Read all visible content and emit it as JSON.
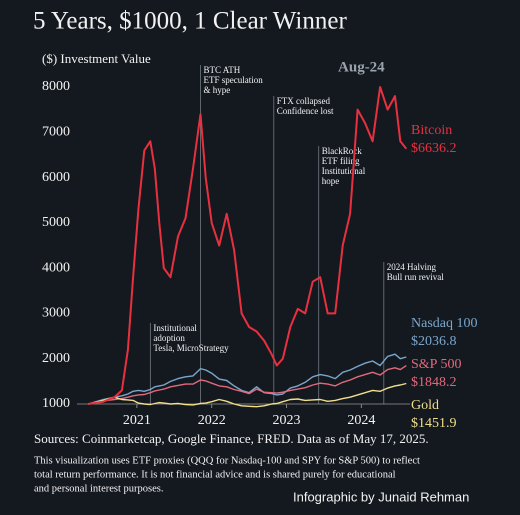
{
  "chart_data": {
    "type": "line",
    "title": "5 Years, $1000, 1 Clear Winner",
    "y_label": "($) Investment Value",
    "x": [
      2020.35,
      2020.55,
      2020.7,
      2020.8,
      2020.88,
      2020.95,
      2021.02,
      2021.1,
      2021.18,
      2021.24,
      2021.3,
      2021.36,
      2021.45,
      2021.55,
      2021.65,
      2021.75,
      2021.85,
      2021.92,
      2022.0,
      2022.1,
      2022.2,
      2022.3,
      2022.4,
      2022.5,
      2022.6,
      2022.7,
      2022.8,
      2022.87,
      2022.95,
      2023.05,
      2023.15,
      2023.25,
      2023.35,
      2023.45,
      2023.55,
      2023.65,
      2023.75,
      2023.85,
      2023.95,
      2024.05,
      2024.15,
      2024.25,
      2024.35,
      2024.45,
      2024.52,
      2024.6
    ],
    "series": [
      {
        "name": "Nasdaq 100",
        "color": "#7aa6cc",
        "end_label": "$2036.8",
        "values": [
          1000,
          1100,
          1150,
          1180,
          1220,
          1280,
          1300,
          1280,
          1320,
          1380,
          1400,
          1420,
          1500,
          1560,
          1600,
          1620,
          1780,
          1750,
          1680,
          1550,
          1520,
          1400,
          1300,
          1250,
          1380,
          1250,
          1230,
          1200,
          1220,
          1350,
          1400,
          1480,
          1600,
          1650,
          1620,
          1560,
          1700,
          1750,
          1830,
          1900,
          1950,
          1850,
          2050,
          2100,
          2000,
          2036.8
        ]
      },
      {
        "name": "S&P 500",
        "color": "#e06a7c",
        "end_label": "$1848.2",
        "values": [
          1000,
          1070,
          1100,
          1120,
          1150,
          1180,
          1200,
          1210,
          1250,
          1290,
          1310,
          1330,
          1380,
          1410,
          1440,
          1440,
          1530,
          1510,
          1460,
          1400,
          1380,
          1320,
          1280,
          1230,
          1330,
          1260,
          1250,
          1240,
          1260,
          1300,
          1330,
          1360,
          1420,
          1460,
          1440,
          1400,
          1480,
          1530,
          1600,
          1650,
          1700,
          1640,
          1760,
          1800,
          1760,
          1848.2
        ]
      },
      {
        "name": "Gold",
        "color": "#f2df8a",
        "end_label": "$1451.9",
        "values": [
          1000,
          1080,
          1150,
          1100,
          1090,
          1080,
          1020,
          1000,
          990,
          1010,
          1030,
          1020,
          1000,
          1010,
          990,
          980,
          1010,
          1020,
          1050,
          1100,
          1060,
          1000,
          960,
          950,
          940,
          960,
          1000,
          1010,
          1050,
          1100,
          1110,
          1080,
          1090,
          1100,
          1060,
          1080,
          1120,
          1150,
          1200,
          1250,
          1300,
          1280,
          1350,
          1400,
          1420,
          1451.9
        ]
      },
      {
        "name": "Bitcoin",
        "color": "#e8303f",
        "end_label": "$6636.2",
        "values": [
          1000,
          1050,
          1150,
          1300,
          2200,
          3800,
          5300,
          6600,
          6800,
          6200,
          5000,
          4000,
          3800,
          4700,
          5100,
          6200,
          7400,
          6000,
          5000,
          4500,
          5200,
          4400,
          3000,
          2700,
          2600,
          2400,
          2100,
          1850,
          2000,
          2700,
          3100,
          3000,
          3700,
          3800,
          3000,
          3000,
          4500,
          5200,
          7500,
          7200,
          6800,
          8000,
          7500,
          7800,
          6800,
          6636.2
        ]
      }
    ],
    "xlim": [
      2020.2,
      2024.65
    ],
    "xticks": [
      2021,
      2022,
      2023,
      2024
    ],
    "ylim": [
      1000,
      8000
    ],
    "yticks": [
      1000,
      2000,
      3000,
      4000,
      5000,
      6000,
      7000,
      8000
    ],
    "annotations": [
      {
        "x": 2021.18,
        "text": [
          "Institutional",
          "adoption",
          "Tesla, MicroStrategy"
        ]
      },
      {
        "x": 2021.85,
        "text": [
          "BTC ATH",
          "ETF speculation",
          "& hype"
        ]
      },
      {
        "x": 2022.83,
        "text": [
          "FTX collapsed",
          "Confidence lost"
        ]
      },
      {
        "x": 2023.43,
        "text": [
          "BlackRock",
          "ETF filing",
          "Institutional",
          "hope"
        ]
      },
      {
        "x": 2024.3,
        "text": [
          "2024 Halving",
          "Bull run revival"
        ]
      }
    ],
    "peak_label": {
      "text": "Aug-24",
      "x": 2024.0
    }
  },
  "footer": {
    "source": "Sources: Coinmarketcap, Google Finance, FRED. Data as of May 17, 2025.",
    "note": [
      "This visualization uses ETF proxies (QQQ for Nasdaq-100 and SPY for S&P 500) to reflect",
      "total return performance. It is not financial advice and is shared purely for educational",
      "and personal interest purposes."
    ],
    "credit": "Infographic by Junaid Rehman"
  }
}
